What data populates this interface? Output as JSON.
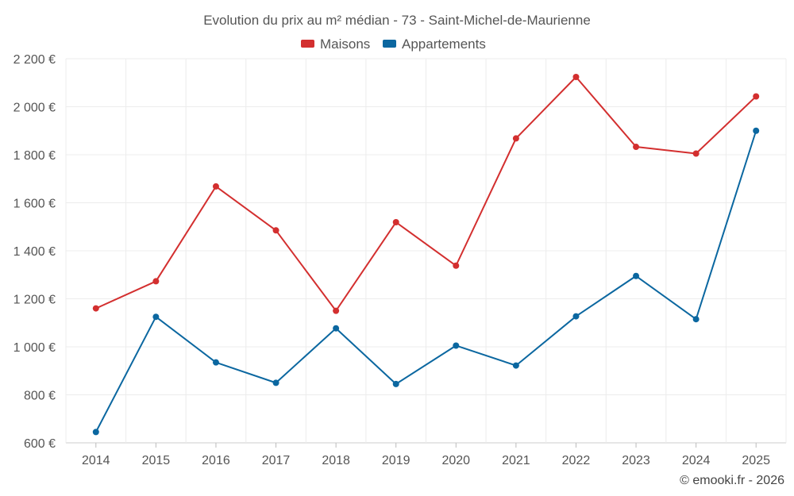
{
  "chart_data": {
    "type": "line",
    "title": "Evolution du prix au m² médian - 73 - Saint-Michel-de-Maurienne",
    "xlabel": "",
    "ylabel": "",
    "categories": [
      "2014",
      "2015",
      "2016",
      "2017",
      "2018",
      "2019",
      "2020",
      "2021",
      "2022",
      "2023",
      "2024",
      "2025"
    ],
    "ylim": [
      600,
      2200
    ],
    "yticks": [
      600,
      800,
      1000,
      1200,
      1400,
      1600,
      1800,
      2000,
      2200
    ],
    "ytick_labels": [
      "600 €",
      "800 €",
      "1 000 €",
      "1 200 €",
      "1 400 €",
      "1 600 €",
      "1 800 €",
      "2 000 €",
      "2 200 €"
    ],
    "grid": true,
    "legend_position": "top-center",
    "series": [
      {
        "name": "Maisons",
        "color": "#d32f2f",
        "values": [
          1160,
          1273,
          1668,
          1485,
          1150,
          1519,
          1338,
          1868,
          2124,
          1833,
          1805,
          2043
        ]
      },
      {
        "name": "Appartements",
        "color": "#0b67a0",
        "values": [
          645,
          1125,
          935,
          850,
          1077,
          845,
          1005,
          922,
          1127,
          1295,
          1115,
          1900
        ]
      }
    ]
  },
  "credit": "© emooki.fr - 2026"
}
